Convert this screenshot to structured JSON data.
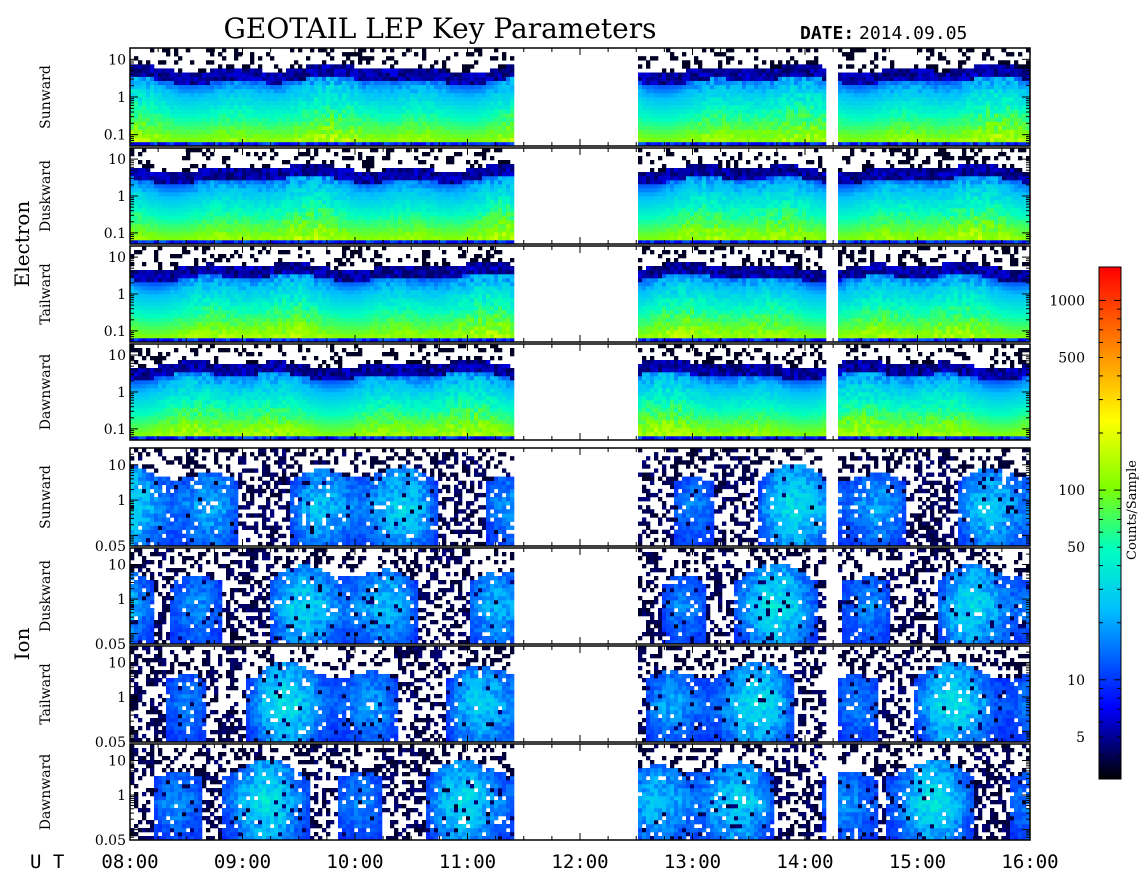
{
  "chart_data": {
    "type": "heatmap",
    "title": "GEOTAIL LEP Key Parameters",
    "date_label": "DATE:",
    "date": "2014.09.05",
    "x_axis_label": "U T",
    "x_ticks": [
      "08:00",
      "09:00",
      "10:00",
      "11:00",
      "12:00",
      "13:00",
      "14:00",
      "15:00",
      "16:00"
    ],
    "x_range_hours": [
      8,
      16
    ],
    "data_gaps_hours": [
      [
        11.42,
        12.5
      ],
      [
        14.2,
        14.28
      ]
    ],
    "colorbar": {
      "label": "Counts/Sample",
      "scale": "log",
      "range": [
        3,
        1500
      ],
      "ticks": [
        "5",
        "10",
        "50",
        "100",
        "500",
        "1000"
      ],
      "tick_values": [
        5,
        10,
        50,
        100,
        500,
        1000
      ],
      "colors": [
        "#000000",
        "#0000ff",
        "#00bfff",
        "#00ffbf",
        "#80ff00",
        "#ffff00",
        "#ff8000",
        "#ff0000"
      ]
    },
    "groups": [
      {
        "name": "Electron",
        "y_scale": "log",
        "y_range": [
          0.05,
          20
        ],
        "y_ticks": [
          "10",
          "1",
          "0.1"
        ],
        "y_tick_values": [
          10,
          1,
          0.1
        ],
        "panels": [
          "Sunward",
          "Duskward",
          "Tailward",
          "Dawnward"
        ]
      },
      {
        "name": "Ion",
        "y_scale": "log",
        "y_range": [
          0.05,
          30
        ],
        "y_ticks": [
          "10",
          "1",
          "0.05"
        ],
        "y_tick_values": [
          10,
          1,
          0.05
        ],
        "panels": [
          "Sunward",
          "Duskward",
          "Tailward",
          "Dawnward"
        ]
      }
    ]
  }
}
